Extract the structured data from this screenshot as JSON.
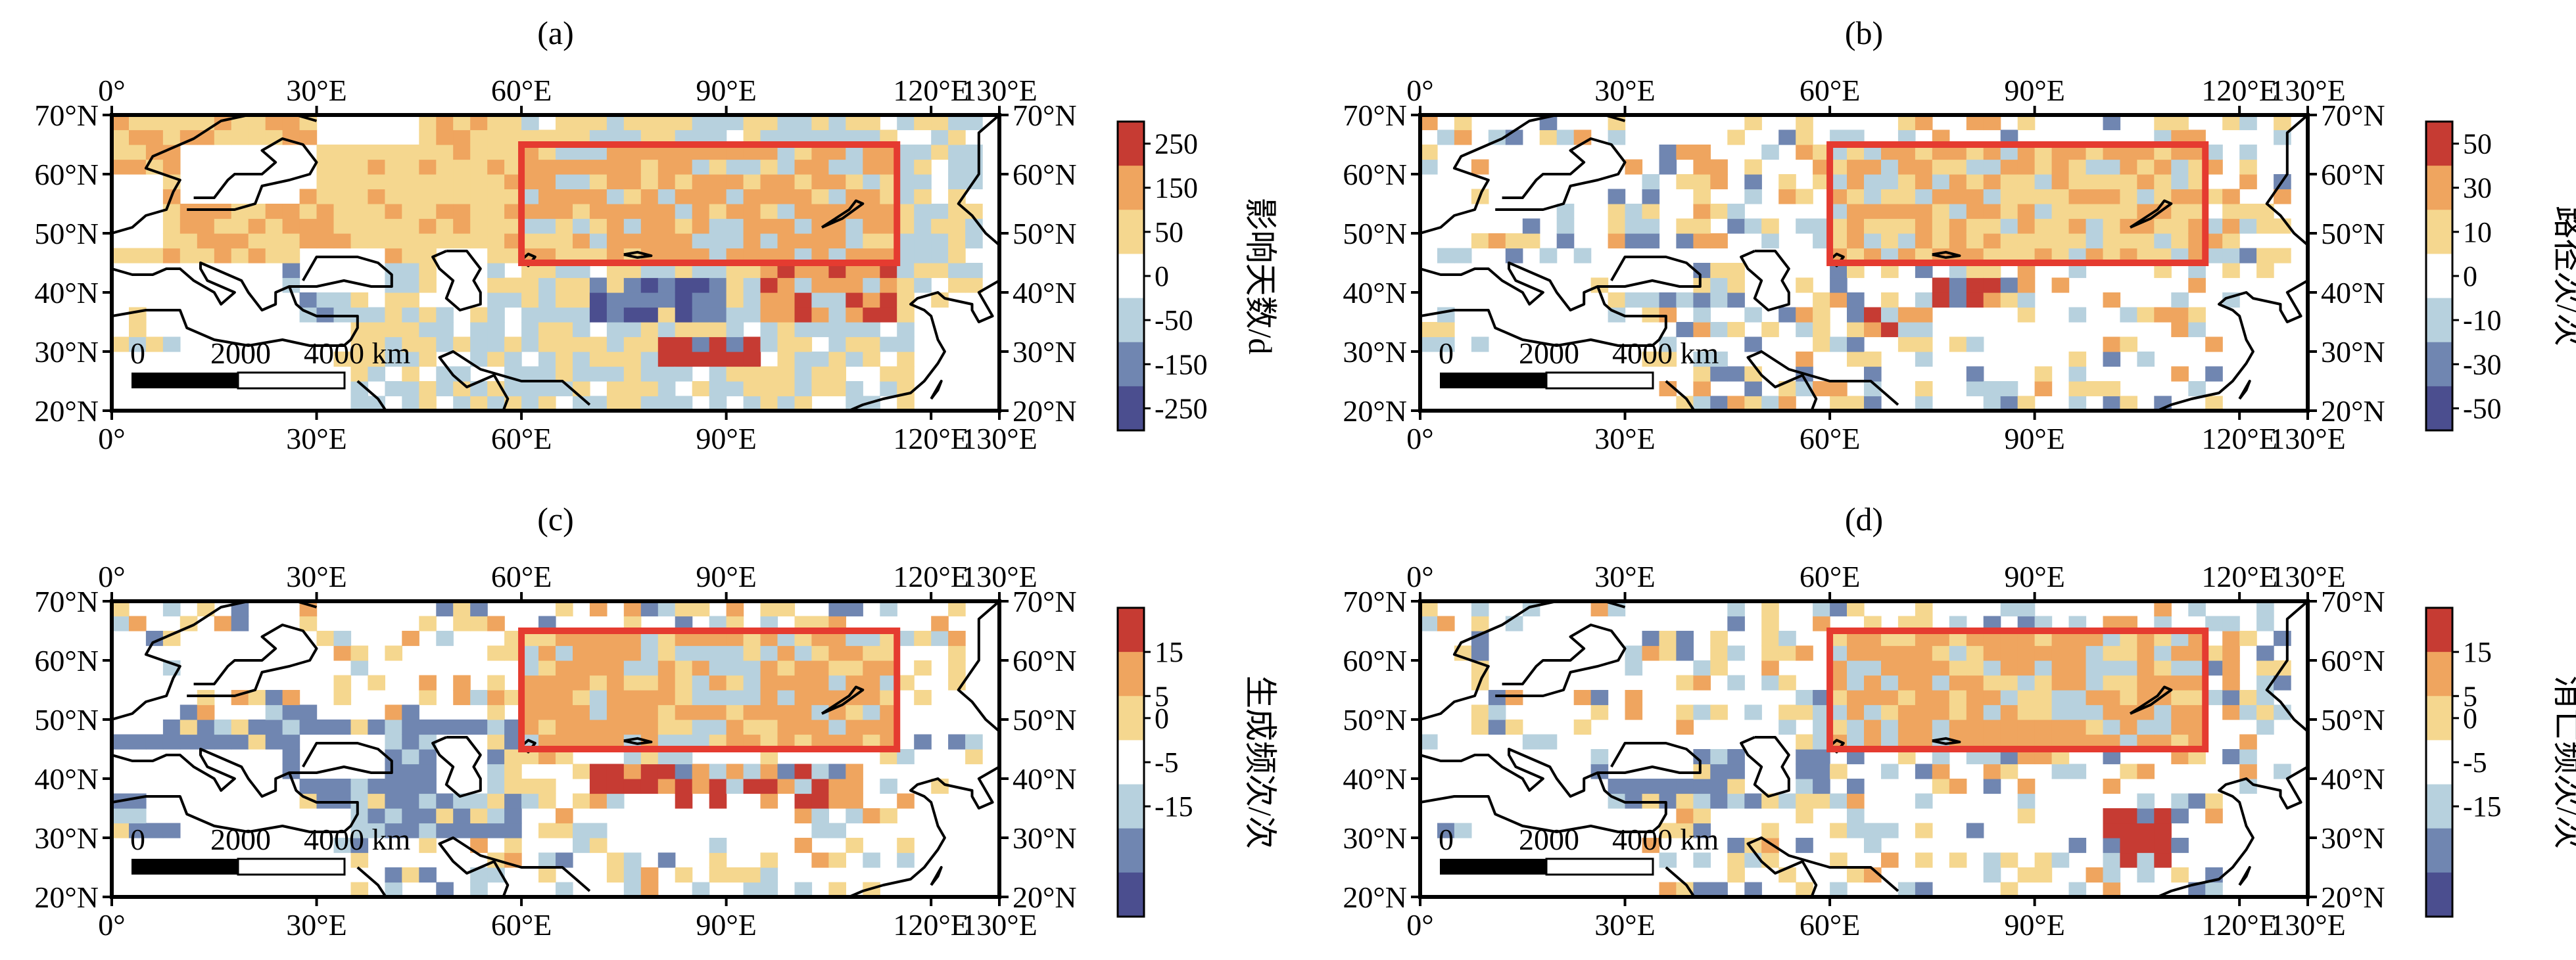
{
  "figure": {
    "lon_range": [
      0,
      130
    ],
    "lat_range": [
      20,
      70
    ],
    "lon_ticks": [
      "0°",
      "30°E",
      "60°E",
      "90°E",
      "120°E",
      "130°E"
    ],
    "lat_ticks": [
      "70°N",
      "60°N",
      "50°N",
      "40°N",
      "30°N",
      "20°N"
    ],
    "scale_bar": {
      "labels": [
        "0",
        "2000",
        "4000 km"
      ]
    },
    "study_region": {
      "lon": [
        60,
        115
      ],
      "lat": [
        45,
        65
      ]
    },
    "colors": {
      "neg3": "#4b4e8f",
      "neg2": "#7086b1",
      "neg1": "#b7d1de",
      "zero": "#ffffff",
      "pos1": "#f5d78f",
      "pos2": "#efa55f",
      "pos3": "#c63b33"
    }
  },
  "panels": [
    {
      "id": "a",
      "label": "(a)",
      "colorbar_title": "影响天数/d",
      "colorbar_ticks": [
        "250",
        "150",
        "50",
        "0",
        "-50",
        "-150",
        "-250"
      ]
    },
    {
      "id": "b",
      "label": "(b)",
      "colorbar_title": "路径次/次",
      "colorbar_ticks": [
        "50",
        "30",
        "10",
        "0",
        "-10",
        "-30",
        "-50"
      ]
    },
    {
      "id": "c",
      "label": "(c)",
      "colorbar_title": "生成频次/次",
      "colorbar_ticks": [
        "15",
        "5",
        "0",
        "-5",
        "-15"
      ]
    },
    {
      "id": "d",
      "label": "(d)",
      "colorbar_title": "消亡频次/次",
      "colorbar_ticks": [
        "15",
        "5",
        "0",
        "-5",
        "-15"
      ]
    }
  ],
  "chart_data": {
    "type": "heatmap",
    "x_unit": "longitude (°E)",
    "y_unit": "latitude (°N)",
    "grid_resolution_deg": 2.5,
    "panels": [
      {
        "id": "a",
        "field": "影响天数/d",
        "range": [
          -250,
          250
        ],
        "anomaly_regions": [
          {
            "lon": [
              60,
              115
            ],
            "lat": [
              45,
              65
            ],
            "value": 100
          },
          {
            "lon": [
              80,
              95
            ],
            "lat": [
              28,
              32
            ],
            "value": 300
          },
          {
            "lon": [
              95,
              115
            ],
            "lat": [
              35,
              45
            ],
            "value": 150
          },
          {
            "lon": [
              15,
              35
            ],
            "lat": [
              30,
              45
            ],
            "value": -80
          },
          {
            "lon": [
              70,
              90
            ],
            "lat": [
              35,
              42
            ],
            "value": -150
          }
        ]
      },
      {
        "id": "b",
        "field": "路径次/次",
        "range": [
          -50,
          50
        ],
        "anomaly_regions": [
          {
            "lon": [
              60,
              115
            ],
            "lat": [
              45,
              65
            ],
            "value": 15
          },
          {
            "lon": [
              75,
              85
            ],
            "lat": [
              38,
              42
            ],
            "value": 55
          },
          {
            "lon": [
              65,
              75
            ],
            "lat": [
              32,
              38
            ],
            "value": 30
          },
          {
            "lon": [
              30,
              50
            ],
            "lat": [
              38,
              45
            ],
            "value": -15
          }
        ]
      },
      {
        "id": "c",
        "field": "生成频次/次",
        "range": [
          -15,
          15
        ],
        "anomaly_regions": [
          {
            "lon": [
              60,
              115
            ],
            "lat": [
              45,
              65
            ],
            "value": 6
          },
          {
            "lon": [
              70,
              110
            ],
            "lat": [
              35,
              42
            ],
            "value": 12
          },
          {
            "lon": [
              0,
              60
            ],
            "lat": [
              30,
              50
            ],
            "value": -6
          }
        ]
      },
      {
        "id": "d",
        "field": "消亡频次/次",
        "range": [
          -15,
          15
        ],
        "anomaly_regions": [
          {
            "lon": [
              60,
              115
            ],
            "lat": [
              45,
              65
            ],
            "value": 6
          },
          {
            "lon": [
              100,
              110
            ],
            "lat": [
              25,
              35
            ],
            "value": 15
          },
          {
            "lon": [
              20,
              60
            ],
            "lat": [
              35,
              45
            ],
            "value": -6
          }
        ]
      }
    ]
  }
}
